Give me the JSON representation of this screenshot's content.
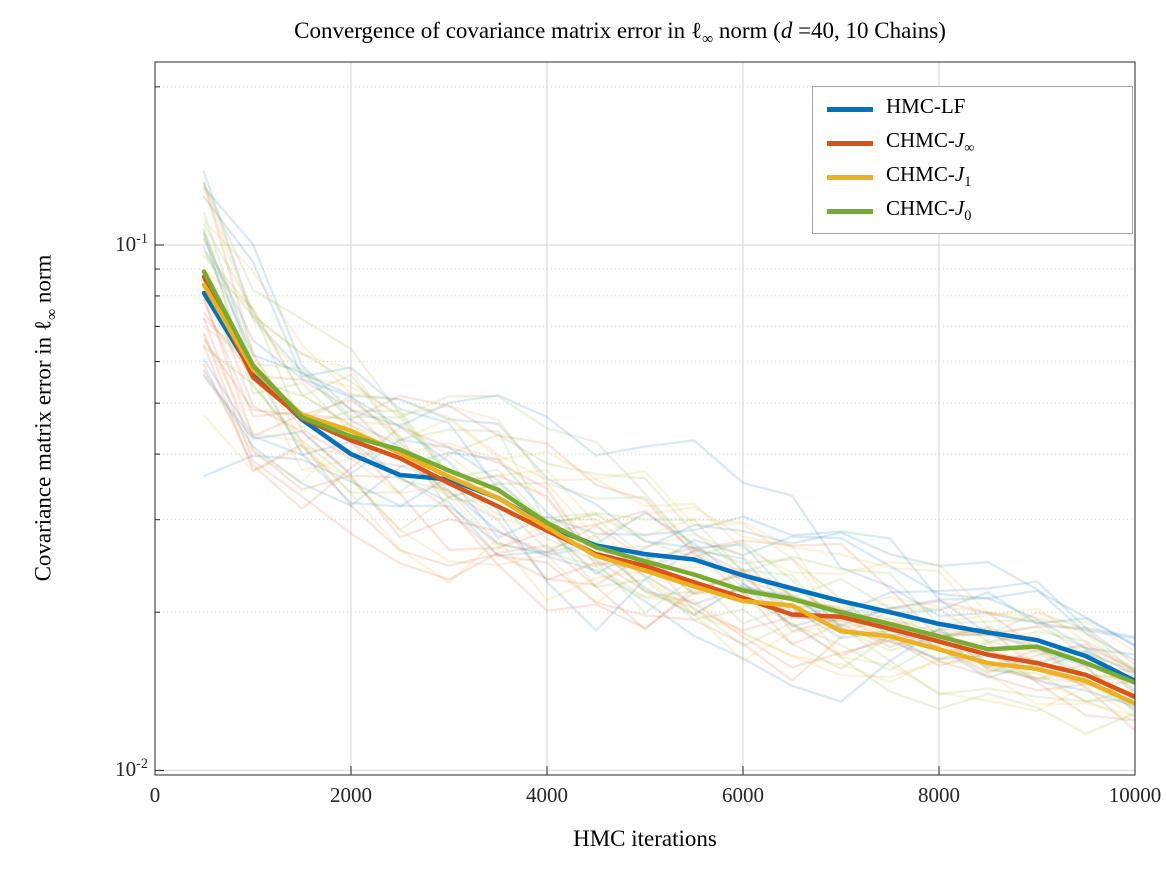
{
  "title": {
    "part1": "Convergence of covariance matrix error in ",
    "ell": "ℓ",
    "ell_sub": "∞",
    "part2": " norm (",
    "d_var": "d",
    "part3": " =40, 10 Chains)"
  },
  "axes": {
    "x_label": "HMC iterations",
    "y_label": {
      "part1": "Covariance matrix error in ",
      "ell": "ℓ",
      "ell_sub": "∞",
      "part2": " norm"
    },
    "y_tick_labels": [
      {
        "base": "10",
        "exp": "-1",
        "value": 0.1
      },
      {
        "base": "10",
        "exp": "-2",
        "value": 0.01
      }
    ]
  },
  "legend": {
    "entries": [
      {
        "prefix": "HMC-LF",
        "var": "",
        "sub": "",
        "color": "#0072BD"
      },
      {
        "prefix": "CHMC-",
        "var": "J",
        "sub": "∞",
        "color": "#D95319"
      },
      {
        "prefix": "CHMC-",
        "var": "J",
        "sub": "1",
        "color": "#EDB120"
      },
      {
        "prefix": "CHMC-",
        "var": "J",
        "sub": "0",
        "color": "#77AC30"
      }
    ]
  },
  "chart_data": {
    "type": "line",
    "title": "Convergence of covariance matrix error in ℓ∞ norm (d =40, 10 Chains)",
    "xlabel": "HMC iterations",
    "ylabel": "Covariance matrix error in ℓ∞ norm",
    "x_scale": "linear",
    "y_scale": "log",
    "xlim": [
      0,
      10000
    ],
    "ylim": [
      0.0098,
      0.223
    ],
    "x_ticks": [
      0,
      2000,
      4000,
      6000,
      8000,
      10000
    ],
    "y_major_grid": [
      0.01,
      0.1
    ],
    "y_minor_grid": [
      0.02,
      0.03,
      0.04,
      0.05,
      0.06,
      0.07,
      0.08,
      0.09,
      0.2
    ],
    "grid": true,
    "legend_position": "top-right",
    "x": [
      500,
      1000,
      1500,
      2000,
      2500,
      3000,
      3500,
      4000,
      4500,
      5000,
      5500,
      6000,
      6500,
      7000,
      7500,
      8000,
      8500,
      9000,
      9500,
      10000
    ],
    "series": [
      {
        "name": "HMC-LF",
        "color": "#0072BD",
        "values": [
          0.081,
          0.057,
          0.0465,
          0.04,
          0.0365,
          0.0358,
          0.033,
          0.0292,
          0.0268,
          0.0258,
          0.0252,
          0.0235,
          0.0222,
          0.021,
          0.02,
          0.019,
          0.0183,
          0.0177,
          0.0165,
          0.0148
        ]
      },
      {
        "name": "CHMC-J∞",
        "color": "#D95319",
        "values": [
          0.087,
          0.056,
          0.0468,
          0.0425,
          0.0393,
          0.0352,
          0.0318,
          0.0286,
          0.0258,
          0.0245,
          0.0228,
          0.0213,
          0.0198,
          0.0196,
          0.0186,
          0.0176,
          0.0166,
          0.016,
          0.0152,
          0.0138
        ]
      },
      {
        "name": "CHMC-J1",
        "color": "#EDB120",
        "values": [
          0.084,
          0.058,
          0.0475,
          0.0443,
          0.0402,
          0.0362,
          0.033,
          0.029,
          0.0256,
          0.024,
          0.0224,
          0.021,
          0.0206,
          0.0184,
          0.018,
          0.017,
          0.016,
          0.0156,
          0.0148,
          0.0134
        ]
      },
      {
        "name": "CHMC-J0",
        "color": "#77AC30",
        "values": [
          0.089,
          0.059,
          0.047,
          0.0432,
          0.0408,
          0.0372,
          0.0342,
          0.0296,
          0.0266,
          0.025,
          0.0236,
          0.022,
          0.0212,
          0.02,
          0.019,
          0.018,
          0.017,
          0.0172,
          0.016,
          0.0147
        ]
      }
    ],
    "chains_per_series": 10,
    "chain_opacity": 0.15,
    "chain_seed": 7
  }
}
